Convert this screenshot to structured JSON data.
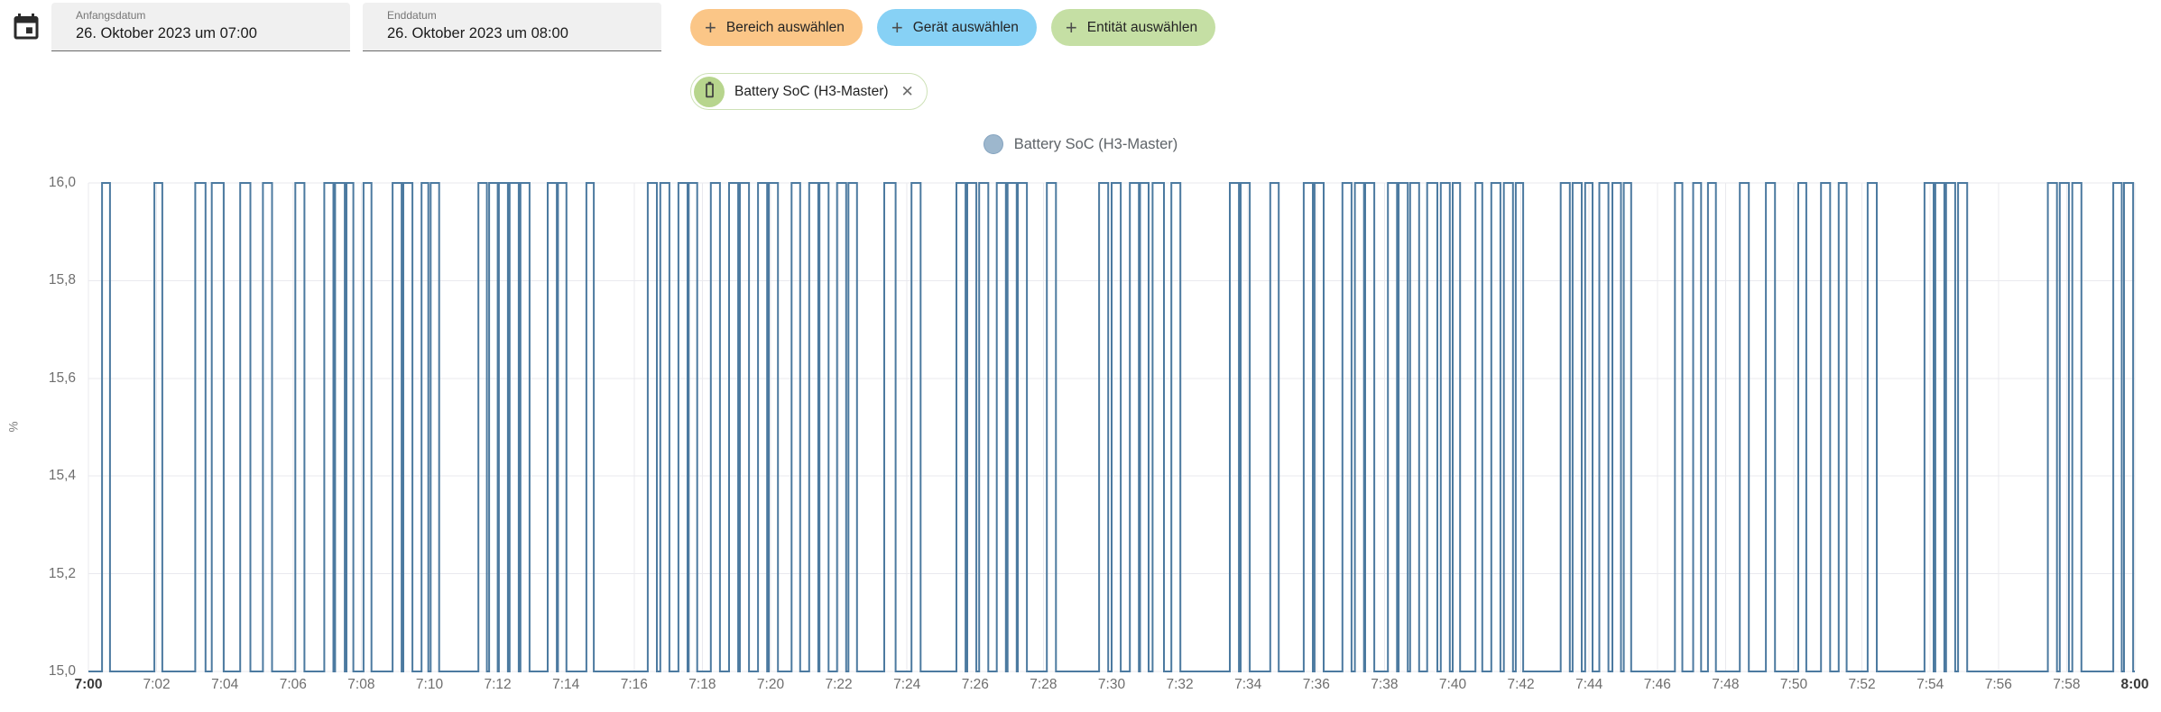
{
  "header": {
    "start_field": {
      "label": "Anfangsdatum",
      "value": "26. Oktober 2023 um 07:00"
    },
    "end_field": {
      "label": "Enddatum",
      "value": "26. Oktober 2023 um 08:00"
    },
    "filter_chips": [
      {
        "label": "Bereich auswählen",
        "icon": "plus-icon",
        "color": "#fbc687"
      },
      {
        "label": "Gerät auswählen",
        "icon": "plus-icon",
        "color": "#87d1f5"
      },
      {
        "label": "Entität auswählen",
        "icon": "plus-icon",
        "color": "#c5dfa4"
      }
    ],
    "entity_chip": {
      "label": "Battery SoC (H3-Master)",
      "icon": "battery-icon",
      "close": "✕",
      "border_color": "#cde1b6",
      "avatar_color": "#b7d58d"
    }
  },
  "chart_data": {
    "type": "line",
    "subtype": "square-wave step series between baseline and pulse value",
    "legend": "Battery SoC (H3-Master)",
    "legend_position": "top-center",
    "title": "",
    "xlabel": "",
    "ylabel": "%",
    "unit": "%",
    "ylim": [
      15.0,
      16.0
    ],
    "ytick_labels": [
      "16,0",
      "15,8",
      "15,6",
      "15,4",
      "15,2",
      "15,0"
    ],
    "xtick_labels": [
      "7:00",
      "7:02",
      "7:04",
      "7:06",
      "7:08",
      "7:10",
      "7:12",
      "7:14",
      "7:16",
      "7:18",
      "7:20",
      "7:22",
      "7:24",
      "7:26",
      "7:28",
      "7:30",
      "7:32",
      "7:34",
      "7:36",
      "7:38",
      "7:40",
      "7:42",
      "7:44",
      "7:46",
      "7:48",
      "7:50",
      "7:52",
      "7:54",
      "7:56",
      "7:58",
      "8:00"
    ],
    "x_start": "7:00",
    "x_end": "8:00",
    "x_range_seconds": [
      0,
      3600
    ],
    "baseline_value": 15.0,
    "pulse_value": 16.0,
    "grid": true,
    "grid_color": "#e9e9ee",
    "series_color": "#4c7aa0",
    "legend_fill": "#9db7cd",
    "pulses_seconds": [
      [
        24,
        38
      ],
      [
        116,
        130
      ],
      [
        188,
        206
      ],
      [
        217,
        238
      ],
      [
        267,
        285
      ],
      [
        307,
        323
      ],
      [
        364,
        380
      ],
      [
        415,
        431
      ],
      [
        434,
        451
      ],
      [
        454,
        466
      ],
      [
        484,
        498
      ],
      [
        535,
        551
      ],
      [
        554,
        570
      ],
      [
        586,
        598
      ],
      [
        602,
        617
      ],
      [
        686,
        701
      ],
      [
        705,
        720
      ],
      [
        722,
        738
      ],
      [
        741,
        757
      ],
      [
        760,
        776
      ],
      [
        808,
        824
      ],
      [
        826,
        841
      ],
      [
        876,
        889
      ],
      [
        984,
        1000
      ],
      [
        1006,
        1022
      ],
      [
        1038,
        1054
      ],
      [
        1056,
        1071
      ],
      [
        1095,
        1111
      ],
      [
        1127,
        1143
      ],
      [
        1146,
        1162
      ],
      [
        1178,
        1194
      ],
      [
        1197,
        1213
      ],
      [
        1237,
        1252
      ],
      [
        1268,
        1284
      ],
      [
        1286,
        1302
      ],
      [
        1317,
        1333
      ],
      [
        1337,
        1352
      ],
      [
        1400,
        1420
      ],
      [
        1448,
        1464
      ],
      [
        1527,
        1543
      ],
      [
        1546,
        1562
      ],
      [
        1567,
        1583
      ],
      [
        1598,
        1614
      ],
      [
        1617,
        1633
      ],
      [
        1635,
        1651
      ],
      [
        1686,
        1702
      ],
      [
        1778,
        1794
      ],
      [
        1800,
        1816
      ],
      [
        1832,
        1848
      ],
      [
        1850,
        1865
      ],
      [
        1872,
        1892
      ],
      [
        1905,
        1921
      ],
      [
        2008,
        2024
      ],
      [
        2027,
        2043
      ],
      [
        2079,
        2094
      ],
      [
        2138,
        2154
      ],
      [
        2157,
        2173
      ],
      [
        2206,
        2222
      ],
      [
        2228,
        2244
      ],
      [
        2246,
        2262
      ],
      [
        2286,
        2302
      ],
      [
        2305,
        2321
      ],
      [
        2325,
        2341
      ],
      [
        2355,
        2373
      ],
      [
        2379,
        2395
      ],
      [
        2400,
        2413
      ],
      [
        2440,
        2452
      ],
      [
        2468,
        2484
      ],
      [
        2490,
        2506
      ],
      [
        2511,
        2524
      ],
      [
        2590,
        2606
      ],
      [
        2611,
        2627
      ],
      [
        2633,
        2646
      ],
      [
        2658,
        2674
      ],
      [
        2681,
        2696
      ],
      [
        2701,
        2714
      ],
      [
        2791,
        2804
      ],
      [
        2823,
        2837
      ],
      [
        2849,
        2863
      ],
      [
        2905,
        2921
      ],
      [
        2951,
        2967
      ],
      [
        3008,
        3022
      ],
      [
        3048,
        3064
      ],
      [
        3079,
        3093
      ],
      [
        3130,
        3146
      ],
      [
        3230,
        3246
      ],
      [
        3249,
        3265
      ],
      [
        3268,
        3284
      ],
      [
        3289,
        3305
      ],
      [
        3447,
        3463
      ],
      [
        3468,
        3484
      ],
      [
        3490,
        3506
      ],
      [
        3562,
        3577
      ],
      [
        3581,
        3597
      ]
    ]
  }
}
